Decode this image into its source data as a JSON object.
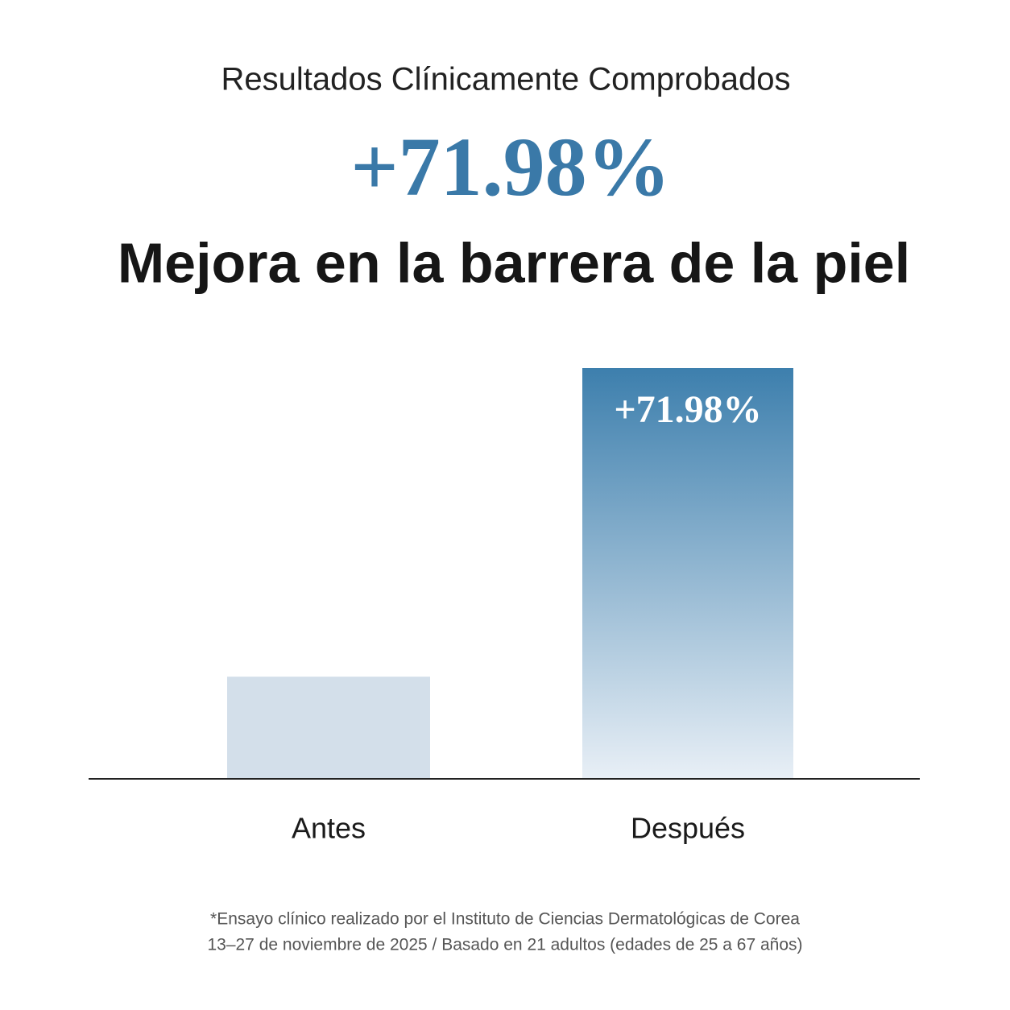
{
  "chart_data": {
    "type": "bar",
    "subtitle": "Resultados Clínicamente Comprobados",
    "headline": "+71.98%",
    "title": "Mejora en la barrera de la piel",
    "categories": [
      "Antes",
      "Después"
    ],
    "values": [
      17.8,
      71.98
    ],
    "value_labels": [
      null,
      "+71.98%"
    ],
    "colors": [
      "#d3dfea",
      "#3d7fad"
    ],
    "footnote": [
      "*Ensayo clínico realizado por el Instituto de Ciencias Dermatológicas de Corea",
      "13–27 de noviembre de 2025 / Basado en 21 adultos (edades de 25 a 67 años)"
    ]
  }
}
